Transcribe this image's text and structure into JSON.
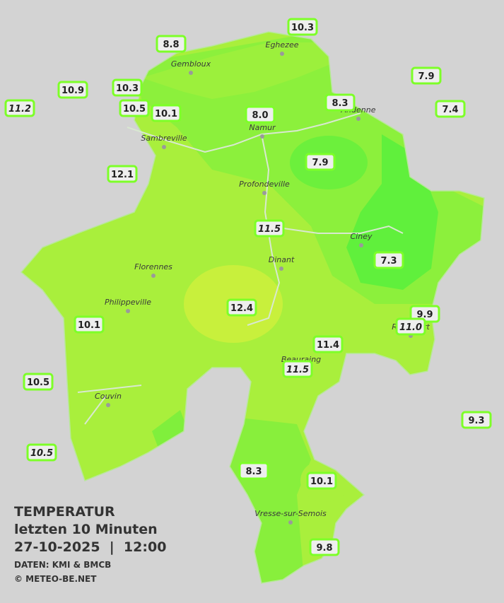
{
  "title": "TEMPERATUR",
  "subtitle": "letzten 10 Minuten",
  "timestamp": "27-10-2025  |  12:00",
  "source": "DATEN: KMI & BMCB",
  "copyright": "© METEO-BE.NET",
  "cities": [
    "Eghezee",
    "Gembloux",
    "Andenne",
    "Namur",
    "Sambreville",
    "Profondeville",
    "Ciney",
    "Dinant",
    "Florennes",
    "Philippeville",
    "Rochefort",
    "Beauraing",
    "Couvin",
    "Vresse-sur-Semois"
  ],
  "stations": [
    {
      "label": "10.3"
    },
    {
      "label": "8.8"
    },
    {
      "label": "7.9"
    },
    {
      "label": "10.9"
    },
    {
      "label": "10.3"
    },
    {
      "label": "11.2",
      "italic": true
    },
    {
      "label": "10.5"
    },
    {
      "label": "10.1"
    },
    {
      "label": "8.0"
    },
    {
      "label": "8.3"
    },
    {
      "label": "7.4"
    },
    {
      "label": "7.9"
    },
    {
      "label": "12.1"
    },
    {
      "label": "11.5",
      "italic": true
    },
    {
      "label": "7.3"
    },
    {
      "label": "12.4"
    },
    {
      "label": "9.9"
    },
    {
      "label": "10.1"
    },
    {
      "label": "11.0",
      "italic": true
    },
    {
      "label": "11.4"
    },
    {
      "label": "11.5",
      "italic": true
    },
    {
      "label": "10.5"
    },
    {
      "label": "9.3"
    },
    {
      "label": "10.5",
      "italic": true
    },
    {
      "label": "8.3"
    },
    {
      "label": "10.1"
    },
    {
      "label": "9.8"
    }
  ]
}
